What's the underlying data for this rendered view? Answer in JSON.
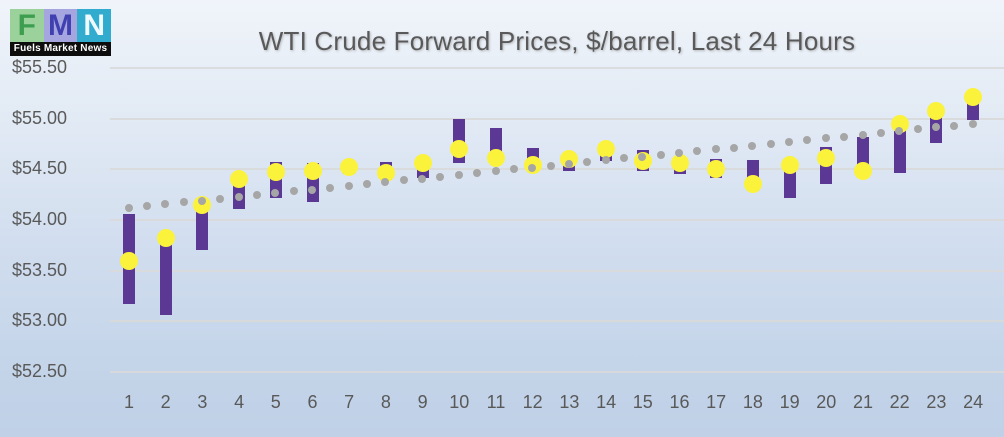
{
  "logo": {
    "letters": [
      {
        "char": "F",
        "bg": "#9bd19b",
        "fg": "#3e9e50"
      },
      {
        "char": "M",
        "bg": "#a5a5e0",
        "fg": "#4040b0"
      },
      {
        "char": "N",
        "bg": "#31abce",
        "fg": "#eefaff"
      }
    ],
    "caption": "Fuels Market News"
  },
  "chart_data": {
    "type": "bar",
    "subtype": "floating-range-bars-with-dot-markers-and-dotted-trendline",
    "title": "WTI Crude Forward Prices, $/barrel, Last 24 Hours",
    "xlabel": "",
    "ylabel": "",
    "ylim": [
      52.5,
      55.5
    ],
    "y_tick_step": 0.5,
    "y_tick_labels": [
      "$55.50",
      "$55.00",
      "$54.50",
      "$54.00",
      "$53.50",
      "$53.00",
      "$52.50"
    ],
    "grid": "horizontal",
    "legend": "none",
    "categories": [
      1,
      2,
      3,
      4,
      5,
      6,
      7,
      8,
      9,
      10,
      11,
      12,
      13,
      14,
      15,
      16,
      17,
      18,
      19,
      20,
      21,
      22,
      23,
      24
    ],
    "series": [
      {
        "name": "price-range-bar",
        "type": "range-bar",
        "color": "#5b3894",
        "ranges": [
          [
            53.17,
            54.06
          ],
          [
            53.06,
            53.88
          ],
          [
            53.7,
            54.1
          ],
          [
            54.11,
            54.37
          ],
          [
            54.22,
            54.57
          ],
          [
            54.18,
            54.56
          ],
          [
            54.45,
            54.58
          ],
          [
            54.39,
            54.57
          ],
          [
            54.41,
            54.62
          ],
          [
            54.56,
            55.0
          ],
          [
            54.62,
            54.91
          ],
          [
            54.49,
            54.71
          ],
          [
            54.48,
            54.62
          ],
          [
            54.58,
            54.72
          ],
          [
            54.48,
            54.69
          ],
          [
            54.45,
            54.62
          ],
          [
            54.41,
            54.6
          ],
          [
            54.29,
            54.59
          ],
          [
            54.22,
            54.59
          ],
          [
            54.36,
            54.72
          ],
          [
            54.48,
            54.82
          ],
          [
            54.46,
            54.99
          ],
          [
            54.76,
            55.05
          ],
          [
            54.99,
            55.18
          ]
        ]
      },
      {
        "name": "settlement-price-dot",
        "type": "scatter",
        "color": "#fbf23c",
        "values": [
          53.6,
          53.82,
          54.15,
          54.4,
          54.47,
          54.48,
          54.52,
          54.46,
          54.56,
          54.7,
          54.61,
          54.54,
          54.6,
          54.7,
          54.58,
          54.56,
          54.5,
          54.36,
          54.54,
          54.61,
          54.48,
          54.95,
          55.08,
          55.21
        ]
      },
      {
        "name": "trendline",
        "type": "dotted-line",
        "color": "#a6a6a6",
        "start_value": 54.12,
        "end_value": 54.95,
        "dot_count": 47
      }
    ]
  }
}
